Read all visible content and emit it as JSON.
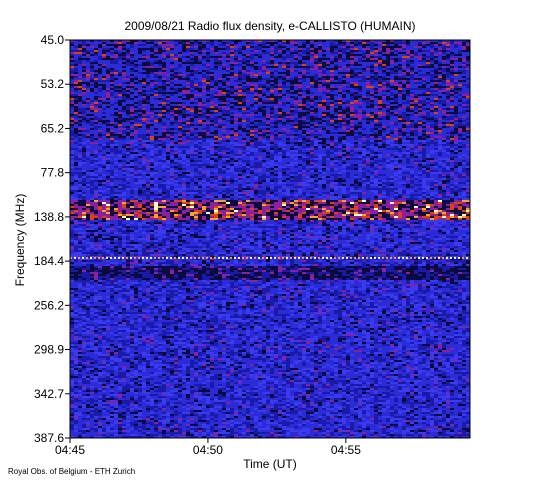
{
  "chart_data": {
    "type": "heatmap",
    "title": "2009/08/21  Radio flux density, e-CALLISTO (HUMAIN)",
    "xlabel": "Time (UT)",
    "ylabel": "Frequency (MHz)",
    "y_ticks": [
      "45.0",
      "53.2",
      "65.2",
      "77.8",
      "138.8",
      "184.4",
      "256.2",
      "298.9",
      "342.7",
      "387.6"
    ],
    "x_ticks": [
      "04:45",
      "04:50",
      "04:55"
    ],
    "x_range": [
      "04:45",
      "04:59:30"
    ],
    "y_direction": "increasing-downward",
    "credit": "Royal Obs. of Belgium - ETH Zurich",
    "colormap": [
      "#0a0a3c",
      "#1a1aa8",
      "#2b2bd8",
      "#3a3af0",
      "#8a1fa0",
      "#e04010",
      "#ffa020",
      "#ffffc0"
    ],
    "features": [
      {
        "description_band": "upper-bands",
        "freq_from": "45.0",
        "freq_to": "65.2",
        "intensity": "moderate"
      },
      {
        "description_band": "strong-band",
        "freq_from": "138.8",
        "freq_to": "138.8",
        "intensity": "high"
      },
      {
        "description_band": "carrier-line",
        "freq_from": "184.4",
        "freq_to": "184.4",
        "intensity": "high"
      },
      {
        "description_band": "dark-band",
        "freq_from": "184.4",
        "freq_to": "256.2",
        "intensity": "low"
      }
    ]
  }
}
